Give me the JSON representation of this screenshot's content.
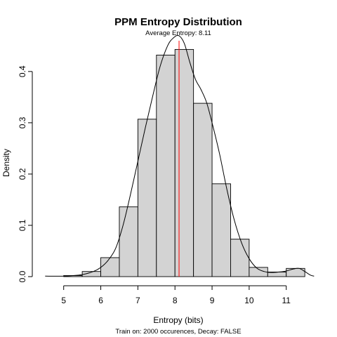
{
  "chart_data": {
    "type": "histogram",
    "title": "PPM Entropy Distribution",
    "subtitle": "Average Entropy: 8.11",
    "xlabel": "Entropy (bits)",
    "ylabel": "Density",
    "footer": "Train on: 2000 occurences, Decay: FALSE",
    "xlim": [
      4.4,
      11.8
    ],
    "ylim": [
      0,
      0.46
    ],
    "x_ticks": [
      5,
      6,
      7,
      8,
      9,
      10,
      11
    ],
    "y_ticks": [
      0.0,
      0.1,
      0.2,
      0.3,
      0.4
    ],
    "y_tick_labels": [
      "0.0",
      "0.1",
      "0.2",
      "0.3",
      "0.4"
    ],
    "bins": [
      {
        "x0": 5.0,
        "x1": 5.5,
        "density": 0.002
      },
      {
        "x0": 5.5,
        "x1": 6.0,
        "density": 0.01
      },
      {
        "x0": 6.0,
        "x1": 6.5,
        "density": 0.037
      },
      {
        "x0": 6.5,
        "x1": 7.0,
        "density": 0.136
      },
      {
        "x0": 7.0,
        "x1": 7.5,
        "density": 0.307
      },
      {
        "x0": 7.5,
        "x1": 8.0,
        "density": 0.432
      },
      {
        "x0": 8.0,
        "x1": 8.5,
        "density": 0.443
      },
      {
        "x0": 8.5,
        "x1": 9.0,
        "density": 0.338
      },
      {
        "x0": 9.0,
        "x1": 9.5,
        "density": 0.181
      },
      {
        "x0": 9.5,
        "x1": 10.0,
        "density": 0.073
      },
      {
        "x0": 10.0,
        "x1": 10.5,
        "density": 0.018
      },
      {
        "x0": 10.5,
        "x1": 11.0,
        "density": 0.009
      },
      {
        "x0": 11.0,
        "x1": 11.5,
        "density": 0.016
      }
    ],
    "density_curve": [
      [
        4.5,
        0.001
      ],
      [
        5.0,
        0.001
      ],
      [
        5.5,
        0.004
      ],
      [
        5.8,
        0.01
      ],
      [
        6.0,
        0.018
      ],
      [
        6.2,
        0.032
      ],
      [
        6.4,
        0.055
      ],
      [
        6.6,
        0.1
      ],
      [
        6.8,
        0.16
      ],
      [
        7.0,
        0.225
      ],
      [
        7.2,
        0.29
      ],
      [
        7.4,
        0.352
      ],
      [
        7.6,
        0.41
      ],
      [
        7.8,
        0.45
      ],
      [
        7.95,
        0.465
      ],
      [
        8.1,
        0.47
      ],
      [
        8.25,
        0.455
      ],
      [
        8.4,
        0.418
      ],
      [
        8.55,
        0.385
      ],
      [
        8.7,
        0.365
      ],
      [
        8.85,
        0.34
      ],
      [
        9.0,
        0.3
      ],
      [
        9.2,
        0.24
      ],
      [
        9.4,
        0.17
      ],
      [
        9.6,
        0.11
      ],
      [
        9.8,
        0.065
      ],
      [
        10.0,
        0.035
      ],
      [
        10.2,
        0.017
      ],
      [
        10.4,
        0.01
      ],
      [
        10.6,
        0.008
      ],
      [
        10.8,
        0.009
      ],
      [
        11.0,
        0.011
      ],
      [
        11.2,
        0.015
      ],
      [
        11.35,
        0.016
      ],
      [
        11.5,
        0.01
      ],
      [
        11.65,
        0.003
      ],
      [
        11.75,
        0.001
      ]
    ],
    "mean_line": {
      "x": 8.11,
      "color": "#ff0000"
    },
    "bar_fill": "#d3d3d3"
  }
}
